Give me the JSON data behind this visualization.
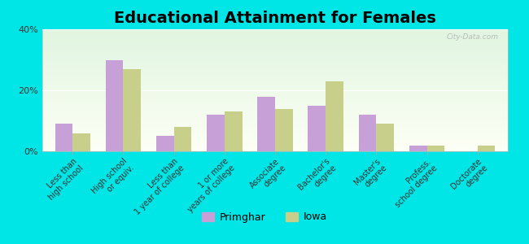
{
  "title": "Educational Attainment for Females",
  "categories": [
    "Less than\nhigh school",
    "High school\nor equiv.",
    "Less than\n1 year of college",
    "1 or more\nyears of college",
    "Associate\ndegree",
    "Bachelor's\ndegree",
    "Master's\ndegree",
    "Profess.\nschool degree",
    "Doctorate\ndegree"
  ],
  "primghar_values": [
    9,
    30,
    5,
    12,
    18,
    15,
    12,
    2,
    0
  ],
  "iowa_values": [
    6,
    27,
    8,
    13,
    14,
    23,
    9,
    2,
    2
  ],
  "primghar_color": "#c8a0d8",
  "iowa_color": "#c8cf8a",
  "background_color": "#00e5e5",
  "ylim": [
    0,
    40
  ],
  "yticks": [
    0,
    20,
    40
  ],
  "ytick_labels": [
    "0%",
    "20%",
    "40%"
  ],
  "bar_width": 0.35,
  "title_fontsize": 14,
  "tick_fontsize": 7,
  "legend_labels": [
    "Primghar",
    "Iowa"
  ],
  "watermark": "City-Data.com"
}
